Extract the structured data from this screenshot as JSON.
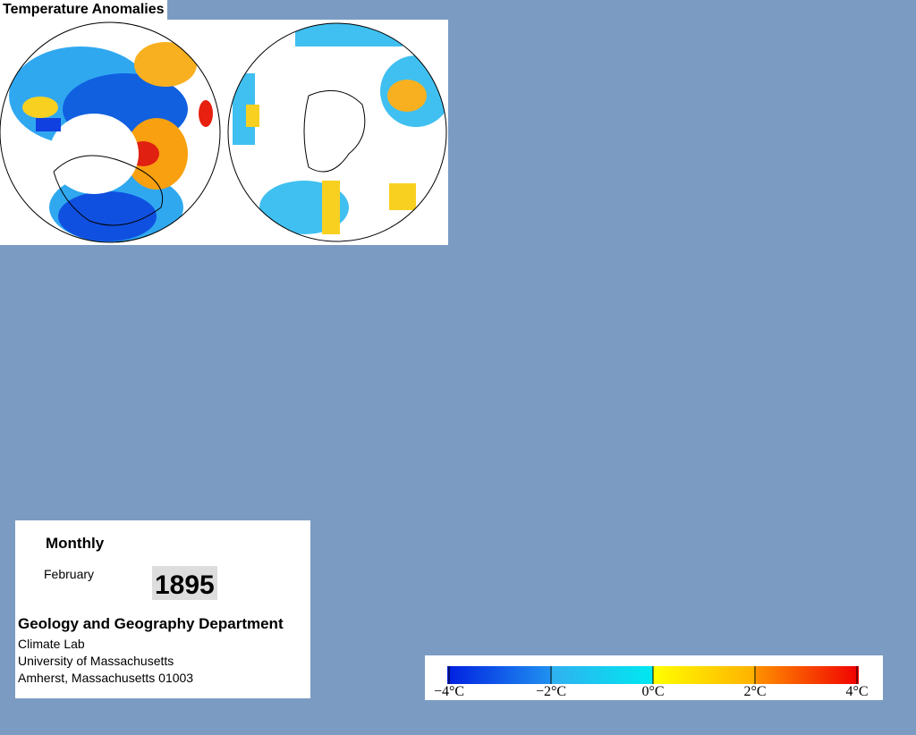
{
  "header": {
    "title": "Temperature Anomalies"
  },
  "info": {
    "period": "Monthly",
    "month": "February",
    "year": "1895",
    "department": "Geology and Geography Department",
    "lines": [
      "Climate Lab",
      "University of Massachusetts",
      "Amherst, Massachusetts 01003"
    ]
  },
  "colorbar": {
    "lim": [
      -4,
      4
    ],
    "ticks": [
      {
        "value": -4,
        "label": "−4°C"
      },
      {
        "value": -2,
        "label": "−2°C"
      },
      {
        "value": 0,
        "label": "0°C"
      },
      {
        "value": 2,
        "label": "2°C"
      },
      {
        "value": 4,
        "label": "4°C"
      }
    ]
  }
}
